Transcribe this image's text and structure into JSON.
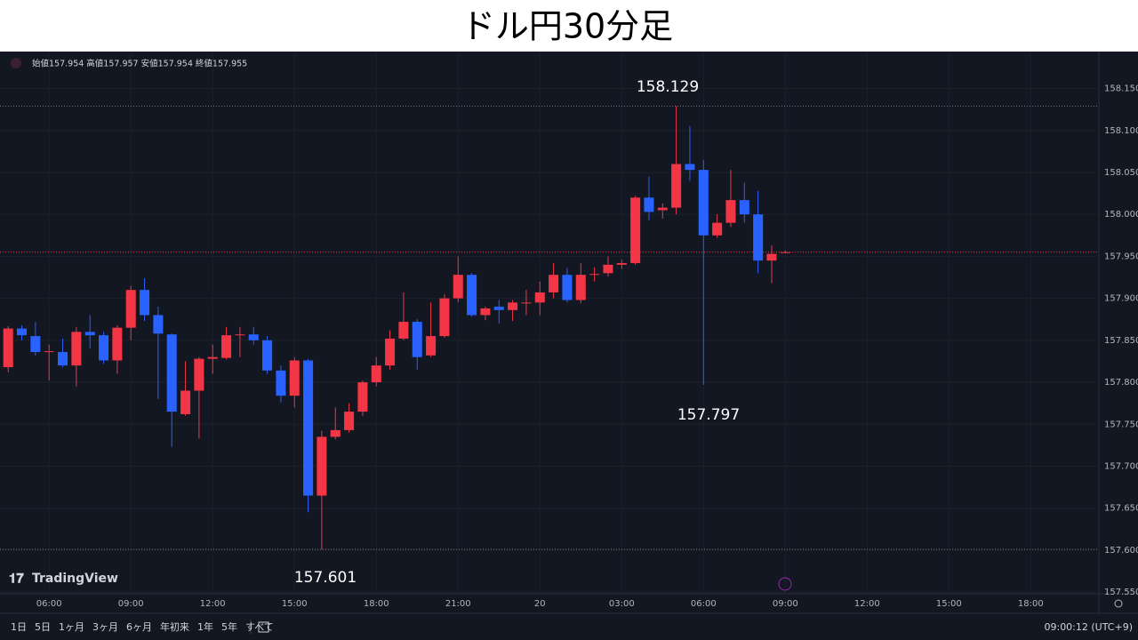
{
  "title": "ドル円30分足",
  "ohlc_legend": "始値157.954 高値157.957 安値157.954 終値157.955",
  "brand": "TradingView",
  "toolbar": [
    "1日",
    "5日",
    "1ヶ月",
    "3ヶ月",
    "6ヶ月",
    "年初来",
    "1年",
    "5年",
    "すべて"
  ],
  "clock": "09:00:12 (UTC+9)",
  "chart_data": {
    "type": "candlestick",
    "up_color": "#f23645",
    "down_color": "#2962ff",
    "open": [
      157.818,
      157.864,
      157.855,
      157.836,
      157.836,
      157.82,
      157.86,
      157.856,
      157.826,
      157.865,
      157.91,
      157.88,
      157.857,
      157.762,
      157.79,
      157.828,
      157.829,
      157.856,
      157.857,
      157.85,
      157.814,
      157.784,
      157.826,
      157.665,
      157.735,
      157.743,
      157.765,
      157.8,
      157.82,
      157.852,
      157.872,
      157.832,
      157.855,
      157.9,
      157.928,
      157.88,
      157.89,
      157.886,
      157.894,
      157.895,
      157.907,
      157.928,
      157.898,
      157.928,
      157.93,
      157.94,
      157.942,
      158.02,
      158.005,
      158.008,
      158.06,
      158.053,
      157.975,
      157.99,
      158.017,
      158.0,
      157.945,
      157.954
    ],
    "high": [
      157.867,
      157.868,
      157.872,
      157.845,
      157.852,
      157.866,
      157.88,
      157.86,
      157.868,
      157.915,
      157.924,
      157.89,
      157.858,
      157.825,
      157.83,
      157.845,
      157.866,
      157.866,
      157.866,
      157.855,
      157.82,
      157.83,
      157.828,
      157.742,
      157.77,
      157.775,
      157.802,
      157.83,
      157.862,
      157.907,
      157.875,
      157.895,
      157.905,
      157.95,
      157.93,
      157.89,
      157.898,
      157.898,
      157.91,
      157.92,
      157.942,
      157.936,
      157.942,
      157.937,
      157.95,
      157.946,
      158.022,
      158.045,
      158.013,
      158.129,
      158.105,
      158.065,
      158.0,
      158.053,
      158.038,
      158.028,
      157.963,
      157.957
    ],
    "low": [
      157.812,
      157.85,
      157.832,
      157.802,
      157.818,
      157.795,
      157.84,
      157.822,
      157.81,
      157.85,
      157.873,
      157.78,
      157.723,
      157.76,
      157.733,
      157.81,
      157.827,
      157.83,
      157.845,
      157.81,
      157.776,
      157.77,
      157.645,
      157.601,
      157.732,
      157.74,
      157.76,
      157.795,
      157.815,
      157.85,
      157.815,
      157.83,
      157.853,
      157.895,
      157.878,
      157.874,
      157.87,
      157.873,
      157.88,
      157.88,
      157.9,
      157.895,
      157.894,
      157.92,
      157.926,
      157.935,
      157.94,
      157.993,
      157.995,
      158.0,
      158.04,
      157.797,
      157.972,
      157.985,
      157.99,
      157.93,
      157.918,
      157.954
    ],
    "close": [
      157.864,
      157.856,
      157.836,
      157.837,
      157.82,
      157.86,
      157.856,
      157.826,
      157.865,
      157.91,
      157.88,
      157.858,
      157.765,
      157.79,
      157.828,
      157.83,
      157.856,
      157.857,
      157.85,
      157.814,
      157.784,
      157.826,
      157.665,
      157.735,
      157.743,
      157.765,
      157.8,
      157.82,
      157.852,
      157.872,
      157.83,
      157.855,
      157.9,
      157.928,
      157.88,
      157.888,
      157.886,
      157.895,
      157.895,
      157.907,
      157.928,
      157.898,
      157.928,
      157.929,
      157.94,
      157.942,
      158.02,
      158.003,
      158.008,
      158.06,
      158.053,
      157.975,
      157.99,
      158.017,
      158.0,
      157.945,
      157.953,
      157.955
    ],
    "xlim": [
      -0.6,
      80
    ],
    "xticks": [
      {
        "value": 3,
        "label": "06:00"
      },
      {
        "value": 9,
        "label": "09:00"
      },
      {
        "value": 15,
        "label": "12:00"
      },
      {
        "value": 21,
        "label": "15:00"
      },
      {
        "value": 27,
        "label": "18:00"
      },
      {
        "value": 33,
        "label": "21:00"
      },
      {
        "value": 39,
        "label": "20"
      },
      {
        "value": 45,
        "label": "03:00"
      },
      {
        "value": 51,
        "label": "06:00"
      },
      {
        "value": 57,
        "label": "09:00"
      },
      {
        "value": 63,
        "label": "12:00"
      },
      {
        "value": 69,
        "label": "15:00"
      },
      {
        "value": 75,
        "label": "18:00"
      }
    ],
    "ylim": [
      157.548,
      158.194
    ],
    "yticks": [
      {
        "value": 157.55,
        "label": "157.550"
      },
      {
        "value": 157.6,
        "label": "157.600"
      },
      {
        "value": 157.65,
        "label": "157.650"
      },
      {
        "value": 157.7,
        "label": "157.700"
      },
      {
        "value": 157.75,
        "label": "157.750"
      },
      {
        "value": 157.8,
        "label": "157.800"
      },
      {
        "value": 157.85,
        "label": "157.850"
      },
      {
        "value": 157.9,
        "label": "157.900"
      },
      {
        "value": 157.95,
        "label": "157.950"
      },
      {
        "value": 158,
        "label": "158.000"
      },
      {
        "value": 158.05,
        "label": "158.050"
      },
      {
        "value": 158.1,
        "label": "158.100"
      },
      {
        "value": 158.15,
        "label": "158.150"
      }
    ],
    "grid": true,
    "annotations": [
      {
        "text": "158.129",
        "value": 158.129
      },
      {
        "text": "157.797",
        "value": 157.797
      },
      {
        "text": "157.601",
        "value": 157.601
      }
    ]
  }
}
